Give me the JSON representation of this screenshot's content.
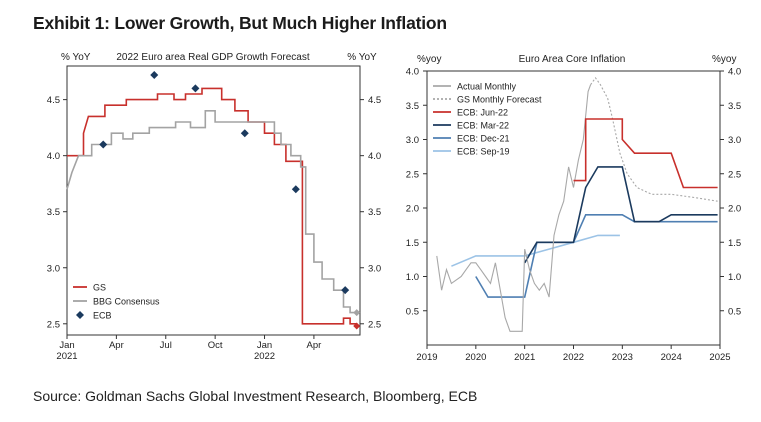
{
  "header": {
    "title": "Exhibit 1: Lower Growth, But Much Higher Inflation"
  },
  "footer": {
    "source": "Source: Goldman Sachs Global Investment Research, Bloomberg, ECB"
  },
  "chart_data": [
    {
      "type": "line",
      "title": "2022 Euro area Real GDP Growth Forecast",
      "ylabel_left": "% YoY",
      "ylabel_right": "% YoY",
      "ylim": [
        2.4,
        4.8
      ],
      "yticks": [
        "2.5",
        "3.0",
        "3.5",
        "4.0",
        "4.5"
      ],
      "xticks": [
        {
          "label": "Jan",
          "sub": "2021",
          "x": 0
        },
        {
          "label": "Apr",
          "sub": "",
          "x": 3
        },
        {
          "label": "Jul",
          "sub": "",
          "x": 6
        },
        {
          "label": "Oct",
          "sub": "",
          "x": 9
        },
        {
          "label": "Jan",
          "sub": "2022",
          "x": 12
        },
        {
          "label": "Apr",
          "sub": "",
          "x": 15
        }
      ],
      "xlim": [
        0,
        17.8
      ],
      "x_unit": "months since Jan 2021",
      "legend_position": "bottom-left",
      "series": [
        {
          "name": "GS",
          "kind": "step",
          "color": "#c8302c",
          "points": [
            [
              0,
              4.0
            ],
            [
              1.0,
              4.0
            ],
            [
              1.0,
              4.2
            ],
            [
              1.3,
              4.35
            ],
            [
              2.3,
              4.35
            ],
            [
              2.3,
              4.45
            ],
            [
              3.6,
              4.45
            ],
            [
              3.6,
              4.5
            ],
            [
              5.5,
              4.5
            ],
            [
              5.5,
              4.55
            ],
            [
              6.5,
              4.55
            ],
            [
              6.5,
              4.5
            ],
            [
              7.2,
              4.5
            ],
            [
              7.2,
              4.55
            ],
            [
              8.2,
              4.55
            ],
            [
              8.2,
              4.6
            ],
            [
              9.4,
              4.6
            ],
            [
              9.4,
              4.5
            ],
            [
              10.2,
              4.5
            ],
            [
              10.2,
              4.4
            ],
            [
              11.0,
              4.4
            ],
            [
              11.0,
              4.3
            ],
            [
              12.0,
              4.3
            ],
            [
              12.0,
              4.2
            ],
            [
              12.6,
              4.2
            ],
            [
              12.6,
              4.1
            ],
            [
              13.3,
              4.1
            ],
            [
              13.3,
              3.95
            ],
            [
              14.3,
              3.95
            ],
            [
              14.3,
              2.5
            ],
            [
              16.8,
              2.5
            ],
            [
              16.8,
              2.55
            ],
            [
              17.2,
              2.55
            ],
            [
              17.2,
              2.5
            ],
            [
              17.6,
              2.5
            ]
          ]
        },
        {
          "name": "BBG Consensus",
          "kind": "step",
          "color": "#a3a3a3",
          "points": [
            [
              0,
              3.7
            ],
            [
              0.3,
              3.85
            ],
            [
              0.7,
              4.0
            ],
            [
              1.5,
              4.0
            ],
            [
              1.5,
              4.1
            ],
            [
              2.7,
              4.1
            ],
            [
              2.7,
              4.2
            ],
            [
              3.4,
              4.2
            ],
            [
              3.4,
              4.15
            ],
            [
              4.0,
              4.15
            ],
            [
              4.0,
              4.2
            ],
            [
              5.0,
              4.2
            ],
            [
              5.0,
              4.25
            ],
            [
              6.6,
              4.25
            ],
            [
              6.6,
              4.3
            ],
            [
              7.5,
              4.3
            ],
            [
              7.5,
              4.25
            ],
            [
              8.4,
              4.25
            ],
            [
              8.4,
              4.4
            ],
            [
              9.0,
              4.4
            ],
            [
              9.0,
              4.3
            ],
            [
              12.6,
              4.3
            ],
            [
              12.6,
              4.2
            ],
            [
              13.0,
              4.2
            ],
            [
              13.0,
              4.1
            ],
            [
              13.6,
              4.1
            ],
            [
              13.6,
              4.0
            ],
            [
              14.2,
              4.0
            ],
            [
              14.2,
              3.9
            ],
            [
              14.5,
              3.9
            ],
            [
              14.5,
              3.3
            ],
            [
              15.0,
              3.3
            ],
            [
              15.0,
              3.05
            ],
            [
              15.5,
              3.05
            ],
            [
              15.5,
              2.9
            ],
            [
              16.2,
              2.9
            ],
            [
              16.2,
              2.8
            ],
            [
              16.8,
              2.8
            ],
            [
              16.8,
              2.65
            ],
            [
              17.2,
              2.65
            ],
            [
              17.2,
              2.6
            ],
            [
              17.6,
              2.6
            ]
          ]
        },
        {
          "name": "ECB",
          "kind": "markers",
          "color": "#1b3a5e",
          "points": [
            [
              2.2,
              4.1
            ],
            [
              5.3,
              4.72
            ],
            [
              7.8,
              4.6
            ],
            [
              10.8,
              4.2
            ],
            [
              13.9,
              3.7
            ],
            [
              16.9,
              2.8
            ]
          ]
        }
      ],
      "end_markers": [
        {
          "series": "GS",
          "x": 17.6,
          "y": 2.48
        },
        {
          "series": "BBG Consensus",
          "x": 17.6,
          "y": 2.6
        }
      ]
    },
    {
      "type": "line",
      "title": "Euro Area Core Inflation",
      "ylabel_left": "%yoy",
      "ylabel_right": "%yoy",
      "ylim": [
        0,
        4.0
      ],
      "yticks": [
        "0.5",
        "1.0",
        "1.5",
        "2.0",
        "2.5",
        "3.0",
        "3.5",
        "4.0"
      ],
      "xticks": [
        "2019",
        "2020",
        "2021",
        "2022",
        "2023",
        "2024",
        "2025"
      ],
      "xlim": [
        2019,
        2025
      ],
      "legend_position": "top-left",
      "series": [
        {
          "name": "Actual Monthly",
          "color": "#a8a8a8",
          "dash": "",
          "points": [
            [
              2019.2,
              1.3
            ],
            [
              2019.3,
              0.8
            ],
            [
              2019.4,
              1.1
            ],
            [
              2019.5,
              0.9
            ],
            [
              2019.6,
              0.95
            ],
            [
              2019.7,
              1.0
            ],
            [
              2019.8,
              1.1
            ],
            [
              2019.9,
              1.2
            ],
            [
              2020.0,
              1.2
            ],
            [
              2020.1,
              1.1
            ],
            [
              2020.2,
              1.0
            ],
            [
              2020.3,
              0.9
            ],
            [
              2020.4,
              1.2
            ],
            [
              2020.5,
              0.8
            ],
            [
              2020.6,
              0.4
            ],
            [
              2020.7,
              0.2
            ],
            [
              2020.8,
              0.2
            ],
            [
              2020.95,
              0.2
            ],
            [
              2021.0,
              1.4
            ],
            [
              2021.1,
              1.1
            ],
            [
              2021.2,
              0.9
            ],
            [
              2021.3,
              0.8
            ],
            [
              2021.4,
              0.9
            ],
            [
              2021.5,
              0.7
            ],
            [
              2021.6,
              1.6
            ],
            [
              2021.7,
              1.9
            ],
            [
              2021.8,
              2.1
            ],
            [
              2021.9,
              2.6
            ],
            [
              2022.0,
              2.3
            ],
            [
              2022.1,
              2.7
            ],
            [
              2022.2,
              3.0
            ],
            [
              2022.3,
              3.7
            ],
            [
              2022.35,
              3.8
            ]
          ]
        },
        {
          "name": "GS Monthly Forecast",
          "color": "#a8a8a8",
          "dash": "2,2",
          "points": [
            [
              2022.35,
              3.8
            ],
            [
              2022.45,
              3.9
            ],
            [
              2022.55,
              3.8
            ],
            [
              2022.7,
              3.6
            ],
            [
              2022.8,
              3.3
            ],
            [
              2022.95,
              2.8
            ],
            [
              2023.1,
              2.5
            ],
            [
              2023.3,
              2.3
            ],
            [
              2023.6,
              2.2
            ],
            [
              2024.0,
              2.2
            ],
            [
              2024.5,
              2.15
            ],
            [
              2024.95,
              2.1
            ]
          ]
        },
        {
          "name": "ECB: Jun-22",
          "color": "#c8302c",
          "dash": "",
          "points": [
            [
              2022.0,
              2.4
            ],
            [
              2022.25,
              2.4
            ],
            [
              2022.25,
              3.3
            ],
            [
              2023.0,
              3.3
            ],
            [
              2023.0,
              3.0
            ],
            [
              2023.25,
              2.8
            ],
            [
              2024.0,
              2.8
            ],
            [
              2024.25,
              2.3
            ],
            [
              2024.95,
              2.3
            ]
          ]
        },
        {
          "name": "ECB: Mar-22",
          "color": "#1b3a5e",
          "dash": "",
          "points": [
            [
              2021.0,
              1.2
            ],
            [
              2021.25,
              1.5
            ],
            [
              2021.75,
              1.5
            ],
            [
              2022.0,
              1.5
            ],
            [
              2022.25,
              2.3
            ],
            [
              2022.5,
              2.6
            ],
            [
              2023.0,
              2.6
            ],
            [
              2023.25,
              1.8
            ],
            [
              2023.75,
              1.8
            ],
            [
              2024.0,
              1.9
            ],
            [
              2024.95,
              1.9
            ]
          ]
        },
        {
          "name": "ECB: Dec-21",
          "color": "#4f7fb2",
          "dash": "",
          "points": [
            [
              2020.0,
              1.0
            ],
            [
              2020.25,
              0.7
            ],
            [
              2021.0,
              0.7
            ],
            [
              2021.25,
              1.5
            ],
            [
              2022.0,
              1.5
            ],
            [
              2022.25,
              1.9
            ],
            [
              2023.0,
              1.9
            ],
            [
              2023.25,
              1.8
            ],
            [
              2024.95,
              1.8
            ]
          ]
        },
        {
          "name": "ECB: Sep-19",
          "color": "#9cc3e6",
          "dash": "",
          "points": [
            [
              2019.5,
              1.15
            ],
            [
              2020.0,
              1.3
            ],
            [
              2021.0,
              1.3
            ],
            [
              2021.5,
              1.4
            ],
            [
              2022.0,
              1.5
            ],
            [
              2022.5,
              1.6
            ],
            [
              2022.95,
              1.6
            ]
          ]
        }
      ]
    }
  ]
}
